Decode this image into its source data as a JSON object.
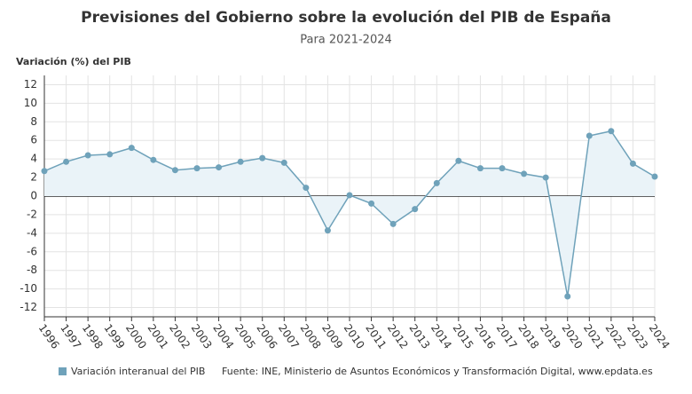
{
  "chart_data": {
    "type": "line",
    "title": "Previsiones del Gobierno sobre la evolución del PIB de España",
    "subtitle": "Para 2021-2024",
    "y_label": "Variación (%) del PIB",
    "source": "Fuente: INE, Ministerio de Asuntos Económicos y Transformación Digital, www.epdata.es",
    "categories": [
      "1996",
      "1997",
      "1998",
      "1999",
      "2000",
      "2001",
      "2002",
      "2003",
      "2004",
      "2005",
      "2006",
      "2007",
      "2008",
      "2009",
      "2010",
      "2011",
      "2012",
      "2013",
      "2014",
      "2015",
      "2016",
      "2017",
      "2018",
      "2019",
      "2020",
      "2021",
      "2022",
      "2023",
      "2024"
    ],
    "series": [
      {
        "name": "Variación interanual del PIB",
        "color": "#6fa2ba",
        "fill": "#eaf3f8",
        "values": [
          2.7,
          3.7,
          4.4,
          4.5,
          5.2,
          3.9,
          2.8,
          3.0,
          3.1,
          3.7,
          4.1,
          3.6,
          0.9,
          -3.7,
          0.1,
          -0.8,
          -3.0,
          -1.4,
          1.4,
          3.8,
          3.0,
          3.0,
          2.4,
          2.0,
          -10.8,
          6.5,
          7.0,
          3.5,
          2.1
        ]
      }
    ],
    "ylim": [
      -13,
      13
    ],
    "yticks": [
      -12,
      -10,
      -8,
      -6,
      -4,
      -2,
      0,
      2,
      4,
      6,
      8,
      10,
      12
    ],
    "grid": true
  }
}
